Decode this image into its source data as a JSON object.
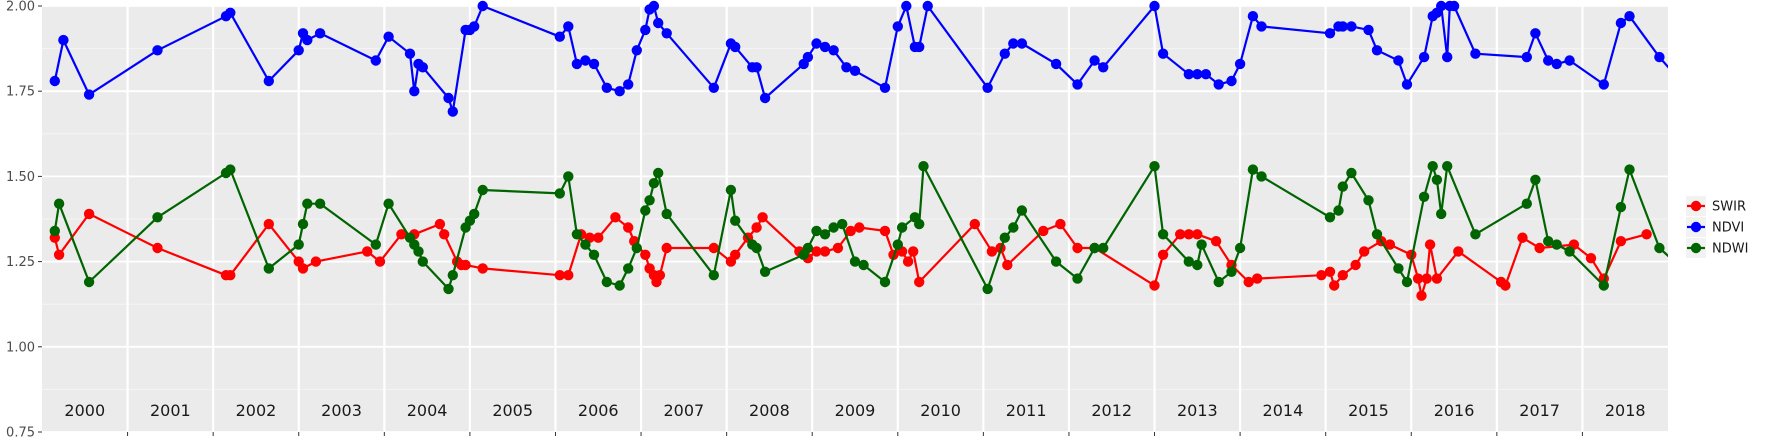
{
  "chart_data": {
    "type": "line",
    "title": "",
    "xlabel": "",
    "ylabel": "",
    "ylim": [
      0.75,
      2.0
    ],
    "xlim": [
      2000.0,
      2019.0
    ],
    "y_ticks": [
      "0.75",
      "1.00",
      "1.25",
      "1.50",
      "1.75",
      "2.00"
    ],
    "year_labels": [
      "2000",
      "2001",
      "2002",
      "2003",
      "2004",
      "2005",
      "2006",
      "2007",
      "2008",
      "2009",
      "2010",
      "2011",
      "2012",
      "2013",
      "2014",
      "2015",
      "2016",
      "2017",
      "2018"
    ],
    "grid": true,
    "legend": "right",
    "series": [
      {
        "name": "SWIR",
        "color": "#ff0000",
        "points": [
          [
            2000.15,
            1.32
          ],
          [
            2000.2,
            1.27
          ],
          [
            2000.55,
            1.39
          ],
          [
            2001.35,
            1.29
          ],
          [
            2002.15,
            1.21
          ],
          [
            2002.2,
            1.21
          ],
          [
            2002.65,
            1.36
          ],
          [
            2003.0,
            1.25
          ],
          [
            2003.05,
            1.23
          ],
          [
            2003.2,
            1.25
          ],
          [
            2003.8,
            1.28
          ],
          [
            2003.95,
            1.25
          ],
          [
            2004.2,
            1.33
          ],
          [
            2004.35,
            1.33
          ],
          [
            2004.65,
            1.36
          ],
          [
            2004.7,
            1.33
          ],
          [
            2004.85,
            1.25
          ],
          [
            2004.9,
            1.24
          ],
          [
            2004.95,
            1.24
          ],
          [
            2005.15,
            1.23
          ],
          [
            2006.05,
            1.21
          ],
          [
            2006.15,
            1.21
          ],
          [
            2006.3,
            1.33
          ],
          [
            2006.4,
            1.32
          ],
          [
            2006.5,
            1.32
          ],
          [
            2006.7,
            1.38
          ],
          [
            2006.85,
            1.35
          ],
          [
            2006.92,
            1.31
          ],
          [
            2007.05,
            1.27
          ],
          [
            2007.1,
            1.23
          ],
          [
            2007.15,
            1.21
          ],
          [
            2007.18,
            1.19
          ],
          [
            2007.22,
            1.21
          ],
          [
            2007.3,
            1.29
          ],
          [
            2007.85,
            1.29
          ],
          [
            2008.05,
            1.25
          ],
          [
            2008.1,
            1.27
          ],
          [
            2008.25,
            1.32
          ],
          [
            2008.35,
            1.35
          ],
          [
            2008.42,
            1.38
          ],
          [
            2008.85,
            1.28
          ],
          [
            2008.95,
            1.26
          ],
          [
            2009.05,
            1.28
          ],
          [
            2009.15,
            1.28
          ],
          [
            2009.3,
            1.29
          ],
          [
            2009.45,
            1.34
          ],
          [
            2009.55,
            1.35
          ],
          [
            2009.85,
            1.34
          ],
          [
            2009.95,
            1.27
          ],
          [
            2010.05,
            1.28
          ],
          [
            2010.12,
            1.25
          ],
          [
            2010.18,
            1.28
          ],
          [
            2010.25,
            1.19
          ],
          [
            2010.9,
            1.36
          ],
          [
            2011.1,
            1.28
          ],
          [
            2011.2,
            1.29
          ],
          [
            2011.28,
            1.24
          ],
          [
            2011.7,
            1.34
          ],
          [
            2011.9,
            1.36
          ],
          [
            2012.1,
            1.29
          ],
          [
            2012.3,
            1.29
          ],
          [
            2013.0,
            1.18
          ],
          [
            2013.1,
            1.27
          ],
          [
            2013.3,
            1.33
          ],
          [
            2013.4,
            1.33
          ],
          [
            2013.5,
            1.33
          ],
          [
            2013.72,
            1.31
          ],
          [
            2013.9,
            1.24
          ],
          [
            2014.1,
            1.19
          ],
          [
            2014.2,
            1.2
          ],
          [
            2014.95,
            1.21
          ],
          [
            2015.05,
            1.22
          ],
          [
            2015.1,
            1.18
          ],
          [
            2015.2,
            1.21
          ],
          [
            2015.35,
            1.24
          ],
          [
            2015.45,
            1.28
          ],
          [
            2015.65,
            1.31
          ],
          [
            2015.75,
            1.3
          ],
          [
            2016.0,
            1.27
          ],
          [
            2016.08,
            1.2
          ],
          [
            2016.12,
            1.15
          ],
          [
            2016.18,
            1.2
          ],
          [
            2016.22,
            1.3
          ],
          [
            2016.3,
            1.2
          ],
          [
            2016.55,
            1.28
          ],
          [
            2017.05,
            1.19
          ],
          [
            2017.1,
            1.18
          ],
          [
            2017.3,
            1.32
          ],
          [
            2017.5,
            1.29
          ],
          [
            2017.9,
            1.3
          ],
          [
            2018.1,
            1.26
          ],
          [
            2018.25,
            1.2
          ],
          [
            2018.45,
            1.31
          ],
          [
            2018.75,
            1.33
          ]
        ]
      },
      {
        "name": "NDVI",
        "color": "#0000ff",
        "points": [
          [
            2000.15,
            1.78
          ],
          [
            2000.25,
            1.9
          ],
          [
            2000.55,
            1.74
          ],
          [
            2001.35,
            1.87
          ],
          [
            2002.15,
            1.97
          ],
          [
            2002.2,
            1.98
          ],
          [
            2002.65,
            1.78
          ],
          [
            2003.0,
            1.87
          ],
          [
            2003.05,
            1.92
          ],
          [
            2003.1,
            1.9
          ],
          [
            2003.25,
            1.92
          ],
          [
            2003.9,
            1.84
          ],
          [
            2004.05,
            1.91
          ],
          [
            2004.3,
            1.86
          ],
          [
            2004.35,
            1.75
          ],
          [
            2004.4,
            1.83
          ],
          [
            2004.45,
            1.82
          ],
          [
            2004.75,
            1.73
          ],
          [
            2004.8,
            1.69
          ],
          [
            2004.95,
            1.93
          ],
          [
            2005.0,
            1.93
          ],
          [
            2005.05,
            1.94
          ],
          [
            2005.15,
            2.0
          ],
          [
            2006.05,
            1.91
          ],
          [
            2006.15,
            1.94
          ],
          [
            2006.25,
            1.83
          ],
          [
            2006.35,
            1.84
          ],
          [
            2006.45,
            1.83
          ],
          [
            2006.6,
            1.76
          ],
          [
            2006.75,
            1.75
          ],
          [
            2006.85,
            1.77
          ],
          [
            2006.95,
            1.87
          ],
          [
            2007.05,
            1.93
          ],
          [
            2007.1,
            1.99
          ],
          [
            2007.15,
            2.0
          ],
          [
            2007.2,
            1.95
          ],
          [
            2007.3,
            1.92
          ],
          [
            2007.85,
            1.76
          ],
          [
            2008.05,
            1.89
          ],
          [
            2008.1,
            1.88
          ],
          [
            2008.3,
            1.82
          ],
          [
            2008.35,
            1.82
          ],
          [
            2008.45,
            1.73
          ],
          [
            2008.9,
            1.83
          ],
          [
            2008.95,
            1.85
          ],
          [
            2009.05,
            1.89
          ],
          [
            2009.15,
            1.88
          ],
          [
            2009.25,
            1.87
          ],
          [
            2009.4,
            1.82
          ],
          [
            2009.5,
            1.81
          ],
          [
            2009.85,
            1.76
          ],
          [
            2010.0,
            1.94
          ],
          [
            2010.1,
            2.0
          ],
          [
            2010.2,
            1.88
          ],
          [
            2010.25,
            1.88
          ],
          [
            2010.35,
            2.0
          ],
          [
            2011.05,
            1.76
          ],
          [
            2011.25,
            1.86
          ],
          [
            2011.35,
            1.89
          ],
          [
            2011.45,
            1.89
          ],
          [
            2011.85,
            1.83
          ],
          [
            2012.1,
            1.77
          ],
          [
            2012.3,
            1.84
          ],
          [
            2012.4,
            1.82
          ],
          [
            2013.0,
            2.0
          ],
          [
            2013.1,
            1.86
          ],
          [
            2013.4,
            1.8
          ],
          [
            2013.5,
            1.8
          ],
          [
            2013.6,
            1.8
          ],
          [
            2013.75,
            1.77
          ],
          [
            2013.9,
            1.78
          ],
          [
            2014.0,
            1.83
          ],
          [
            2014.15,
            1.97
          ],
          [
            2014.25,
            1.94
          ],
          [
            2015.05,
            1.92
          ],
          [
            2015.15,
            1.94
          ],
          [
            2015.2,
            1.94
          ],
          [
            2015.3,
            1.94
          ],
          [
            2015.5,
            1.93
          ],
          [
            2015.6,
            1.87
          ],
          [
            2015.85,
            1.84
          ],
          [
            2015.95,
            1.77
          ],
          [
            2016.15,
            1.85
          ],
          [
            2016.25,
            1.97
          ],
          [
            2016.3,
            1.98
          ],
          [
            2016.35,
            2.0
          ],
          [
            2016.42,
            1.85
          ],
          [
            2016.45,
            2.0
          ],
          [
            2016.5,
            2.0
          ],
          [
            2016.75,
            1.86
          ],
          [
            2017.35,
            1.85
          ],
          [
            2017.45,
            1.92
          ],
          [
            2017.6,
            1.84
          ],
          [
            2017.7,
            1.83
          ],
          [
            2017.85,
            1.84
          ],
          [
            2018.25,
            1.77
          ],
          [
            2018.45,
            1.95
          ],
          [
            2018.55,
            1.97
          ],
          [
            2018.9,
            1.85
          ],
          [
            2019.25,
            1.75
          ]
        ]
      },
      {
        "name": "NDWI",
        "color": "#006400",
        "points": [
          [
            2000.15,
            1.34
          ],
          [
            2000.2,
            1.42
          ],
          [
            2000.55,
            1.19
          ],
          [
            2001.35,
            1.38
          ],
          [
            2002.15,
            1.51
          ],
          [
            2002.2,
            1.52
          ],
          [
            2002.65,
            1.23
          ],
          [
            2003.0,
            1.3
          ],
          [
            2003.05,
            1.36
          ],
          [
            2003.1,
            1.42
          ],
          [
            2003.25,
            1.42
          ],
          [
            2003.9,
            1.3
          ],
          [
            2004.05,
            1.42
          ],
          [
            2004.3,
            1.32
          ],
          [
            2004.35,
            1.3
          ],
          [
            2004.4,
            1.28
          ],
          [
            2004.45,
            1.25
          ],
          [
            2004.75,
            1.17
          ],
          [
            2004.8,
            1.21
          ],
          [
            2004.95,
            1.35
          ],
          [
            2005.0,
            1.37
          ],
          [
            2005.05,
            1.39
          ],
          [
            2005.15,
            1.46
          ],
          [
            2006.05,
            1.45
          ],
          [
            2006.15,
            1.5
          ],
          [
            2006.25,
            1.33
          ],
          [
            2006.35,
            1.3
          ],
          [
            2006.45,
            1.27
          ],
          [
            2006.6,
            1.19
          ],
          [
            2006.75,
            1.18
          ],
          [
            2006.85,
            1.23
          ],
          [
            2006.95,
            1.29
          ],
          [
            2007.05,
            1.4
          ],
          [
            2007.1,
            1.43
          ],
          [
            2007.15,
            1.48
          ],
          [
            2007.2,
            1.51
          ],
          [
            2007.3,
            1.39
          ],
          [
            2007.85,
            1.21
          ],
          [
            2008.05,
            1.46
          ],
          [
            2008.1,
            1.37
          ],
          [
            2008.3,
            1.3
          ],
          [
            2008.35,
            1.29
          ],
          [
            2008.45,
            1.22
          ],
          [
            2008.9,
            1.27
          ],
          [
            2008.95,
            1.29
          ],
          [
            2009.05,
            1.34
          ],
          [
            2009.15,
            1.33
          ],
          [
            2009.25,
            1.35
          ],
          [
            2009.35,
            1.36
          ],
          [
            2009.5,
            1.25
          ],
          [
            2009.6,
            1.24
          ],
          [
            2009.85,
            1.19
          ],
          [
            2010.0,
            1.3
          ],
          [
            2010.05,
            1.35
          ],
          [
            2010.2,
            1.38
          ],
          [
            2010.25,
            1.36
          ],
          [
            2010.3,
            1.53
          ],
          [
            2011.05,
            1.17
          ],
          [
            2011.25,
            1.32
          ],
          [
            2011.35,
            1.35
          ],
          [
            2011.45,
            1.4
          ],
          [
            2011.85,
            1.25
          ],
          [
            2012.1,
            1.2
          ],
          [
            2012.3,
            1.29
          ],
          [
            2012.4,
            1.29
          ],
          [
            2013.0,
            1.53
          ],
          [
            2013.1,
            1.33
          ],
          [
            2013.4,
            1.25
          ],
          [
            2013.5,
            1.24
          ],
          [
            2013.55,
            1.3
          ],
          [
            2013.75,
            1.19
          ],
          [
            2013.9,
            1.22
          ],
          [
            2014.0,
            1.29
          ],
          [
            2014.15,
            1.52
          ],
          [
            2014.25,
            1.5
          ],
          [
            2015.05,
            1.38
          ],
          [
            2015.15,
            1.4
          ],
          [
            2015.2,
            1.47
          ],
          [
            2015.3,
            1.51
          ],
          [
            2015.5,
            1.43
          ],
          [
            2015.6,
            1.33
          ],
          [
            2015.85,
            1.23
          ],
          [
            2015.95,
            1.19
          ],
          [
            2016.15,
            1.44
          ],
          [
            2016.25,
            1.53
          ],
          [
            2016.3,
            1.49
          ],
          [
            2016.35,
            1.39
          ],
          [
            2016.42,
            1.53
          ],
          [
            2016.75,
            1.33
          ],
          [
            2017.35,
            1.42
          ],
          [
            2017.45,
            1.49
          ],
          [
            2017.6,
            1.31
          ],
          [
            2017.7,
            1.3
          ],
          [
            2017.85,
            1.28
          ],
          [
            2018.25,
            1.18
          ],
          [
            2018.45,
            1.41
          ],
          [
            2018.55,
            1.52
          ],
          [
            2018.9,
            1.29
          ],
          [
            2019.25,
            1.21
          ]
        ]
      }
    ]
  }
}
